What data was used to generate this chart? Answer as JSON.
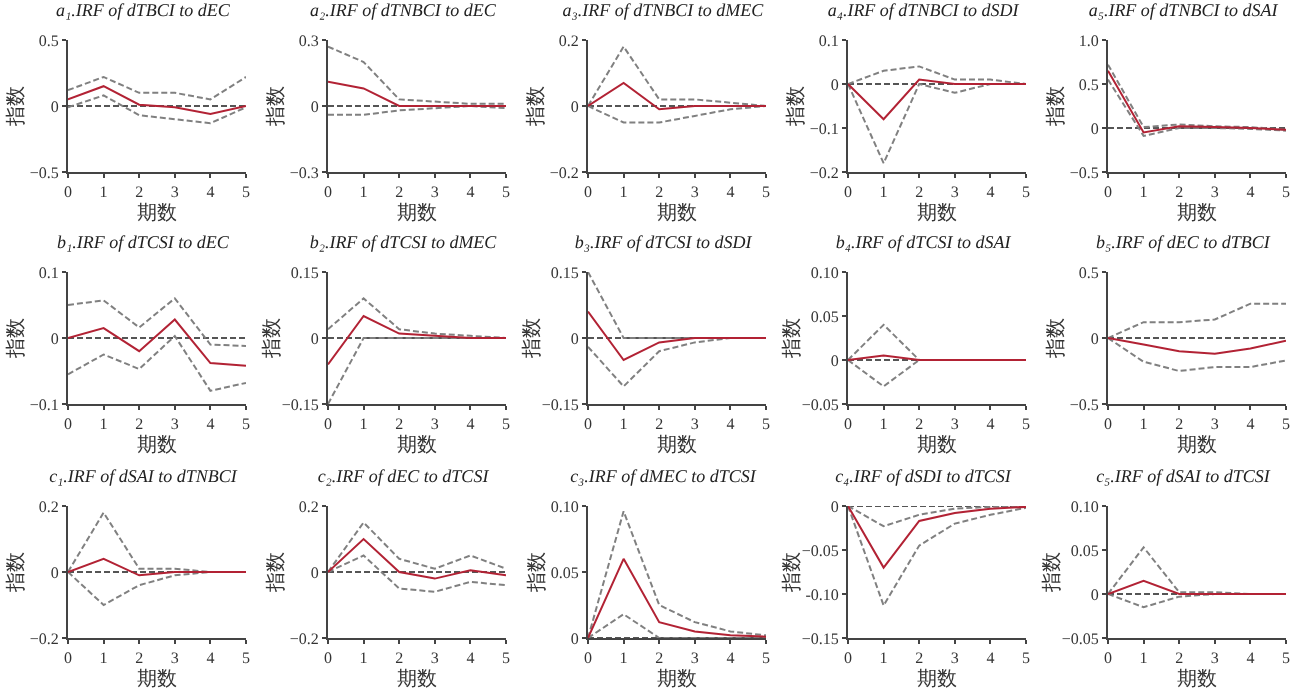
{
  "chart_data": [
    {
      "type": "line",
      "title": "a₁.IRF of dTBCI to dEC",
      "xlabel": "期数",
      "ylabel": "指数",
      "x": [
        0,
        1,
        2,
        3,
        4,
        5
      ],
      "xlim": [
        0,
        5
      ],
      "xticks": [
        0,
        1,
        2,
        3,
        4,
        5
      ],
      "ylim": [
        -0.5,
        0.5
      ],
      "yticks": [
        -0.5,
        0,
        0.5
      ],
      "ref_lines": [
        {
          "axis": "y",
          "value": 0,
          "color": "#555555",
          "line_style": "dashed"
        }
      ],
      "series": [
        {
          "color": "#808080",
          "line_style": "dashed",
          "values": [
            0.12,
            0.22,
            0.1,
            0.1,
            0.05,
            0.22
          ]
        },
        {
          "color": "#808080",
          "line_style": "dashed",
          "values": [
            -0.01,
            0.08,
            -0.07,
            -0.1,
            -0.13,
            -0.01
          ]
        },
        {
          "color": "#b22234",
          "line_style": "solid",
          "values": [
            0.05,
            0.15,
            0.01,
            -0.01,
            -0.06,
            0
          ]
        }
      ]
    },
    {
      "type": "line",
      "title": "a₂.IRF of dTNBCI to dEC",
      "xlabel": "期数",
      "ylabel": "指数",
      "x": [
        0,
        1,
        2,
        3,
        4,
        5
      ],
      "xlim": [
        0,
        5
      ],
      "xticks": [
        0,
        1,
        2,
        3,
        4,
        5
      ],
      "ylim": [
        -0.3,
        0.3
      ],
      "yticks": [
        -0.3,
        0,
        0.3
      ],
      "ref_lines": [
        {
          "axis": "y",
          "value": 0,
          "color": "#555555",
          "line_style": "dashed"
        }
      ],
      "series": [
        {
          "color": "#808080",
          "line_style": "dashed",
          "values": [
            0.27,
            0.2,
            0.03,
            0.02,
            0.01,
            0.01
          ]
        },
        {
          "color": "#808080",
          "line_style": "dashed",
          "values": [
            -0.04,
            -0.04,
            -0.02,
            -0.01,
            0,
            -0.01
          ]
        },
        {
          "color": "#b22234",
          "line_style": "solid",
          "values": [
            0.11,
            0.08,
            0,
            0,
            0,
            0
          ]
        }
      ]
    },
    {
      "type": "line",
      "title": "a₃.IRF of dTNBCI to dMEC",
      "xlabel": "期数",
      "ylabel": "指数",
      "x": [
        0,
        1,
        2,
        3,
        4,
        5
      ],
      "xlim": [
        0,
        5
      ],
      "xticks": [
        0,
        1,
        2,
        3,
        4,
        5
      ],
      "ylim": [
        -0.2,
        0.2
      ],
      "yticks": [
        -0.2,
        0,
        0.2
      ],
      "ref_lines": [
        {
          "axis": "y",
          "value": 0,
          "color": "#555555",
          "line_style": "dashed"
        }
      ],
      "series": [
        {
          "color": "#808080",
          "line_style": "dashed",
          "values": [
            0,
            0.18,
            0.02,
            0.02,
            0.01,
            0
          ]
        },
        {
          "color": "#808080",
          "line_style": "dashed",
          "values": [
            0,
            -0.05,
            -0.05,
            -0.03,
            -0.01,
            0
          ]
        },
        {
          "color": "#b22234",
          "line_style": "solid",
          "values": [
            0,
            0.07,
            -0.01,
            0,
            0,
            0
          ]
        }
      ]
    },
    {
      "type": "line",
      "title": "a₄.IRF of dTNBCI to dSDI",
      "xlabel": "期数",
      "ylabel": "指数",
      "x": [
        0,
        1,
        2,
        3,
        4,
        5
      ],
      "xlim": [
        0,
        5
      ],
      "xticks": [
        0,
        1,
        2,
        3,
        4,
        5
      ],
      "ylim": [
        -0.2,
        0.1
      ],
      "yticks": [
        -0.2,
        -0.1,
        0,
        0.1
      ],
      "ref_lines": [
        {
          "axis": "y",
          "value": 0,
          "color": "#555555",
          "line_style": "dashed"
        }
      ],
      "series": [
        {
          "color": "#808080",
          "line_style": "dashed",
          "values": [
            0,
            0.03,
            0.04,
            0.01,
            0.01,
            0
          ]
        },
        {
          "color": "#808080",
          "line_style": "dashed",
          "values": [
            0,
            -0.18,
            0,
            -0.02,
            0,
            0
          ]
        },
        {
          "color": "#b22234",
          "line_style": "solid",
          "values": [
            0,
            -0.08,
            0.01,
            0,
            0,
            0
          ]
        }
      ]
    },
    {
      "type": "line",
      "title": "a₅.IRF of dTNBCI to dSAI",
      "xlabel": "期数",
      "ylabel": "指数",
      "x": [
        0,
        1,
        2,
        3,
        4,
        5
      ],
      "xlim": [
        0,
        5
      ],
      "xticks": [
        0,
        1,
        2,
        3,
        4,
        5
      ],
      "ylim": [
        -0.5,
        1.0
      ],
      "yticks": [
        -0.5,
        0,
        0.5,
        {
          "value": 1,
          "label": "1.0"
        }
      ],
      "ref_lines": [
        {
          "axis": "y",
          "value": 0,
          "color": "#555555",
          "line_style": "dashed"
        }
      ],
      "series": [
        {
          "color": "#808080",
          "line_style": "dashed",
          "values": [
            0.72,
            0.01,
            0.04,
            0.02,
            0.01,
            -0.02
          ]
        },
        {
          "color": "#808080",
          "line_style": "dashed",
          "values": [
            0.55,
            -0.09,
            0,
            0,
            -0.01,
            -0.03
          ]
        },
        {
          "color": "#b22234",
          "line_style": "solid",
          "values": [
            0.65,
            -0.05,
            0.02,
            0.01,
            0,
            -0.02
          ]
        }
      ]
    },
    {
      "type": "line",
      "title": "b₁.IRF of dTCSI to dEC",
      "xlabel": "期数",
      "ylabel": "指数",
      "x": [
        0,
        1,
        2,
        3,
        4,
        5
      ],
      "xlim": [
        0,
        5
      ],
      "xticks": [
        0,
        1,
        2,
        3,
        4,
        5
      ],
      "ylim": [
        -0.1,
        0.1
      ],
      "yticks": [
        -0.1,
        0,
        0.1
      ],
      "ref_lines": [
        {
          "axis": "y",
          "value": 0,
          "color": "#555555",
          "line_style": "dashed"
        }
      ],
      "series": [
        {
          "color": "#808080",
          "line_style": "dashed",
          "values": [
            0.05,
            0.057,
            0.016,
            0.06,
            -0.01,
            -0.012
          ]
        },
        {
          "color": "#808080",
          "line_style": "dashed",
          "values": [
            -0.055,
            -0.025,
            -0.047,
            0.003,
            -0.08,
            -0.068
          ]
        },
        {
          "color": "#b22234",
          "line_style": "solid",
          "values": [
            0,
            0.015,
            -0.02,
            0.028,
            -0.038,
            -0.042
          ]
        }
      ]
    },
    {
      "type": "line",
      "title": "b₂.IRF of dTCSI to dMEC",
      "xlabel": "期数",
      "ylabel": "指数",
      "x": [
        0,
        1,
        2,
        3,
        4,
        5
      ],
      "xlim": [
        0,
        5
      ],
      "xticks": [
        0,
        1,
        2,
        3,
        4,
        5
      ],
      "ylim": [
        -0.15,
        0.15
      ],
      "yticks": [
        -0.15,
        0,
        0.15
      ],
      "ref_lines": [
        {
          "axis": "y",
          "value": 0,
          "color": "#555555",
          "line_style": "dashed"
        }
      ],
      "series": [
        {
          "color": "#808080",
          "line_style": "dashed",
          "values": [
            0.02,
            0.09,
            0.02,
            0.01,
            0.005,
            0
          ]
        },
        {
          "color": "#808080",
          "line_style": "dashed",
          "values": [
            -0.15,
            0,
            0,
            0,
            0,
            0
          ]
        },
        {
          "color": "#b22234",
          "line_style": "solid",
          "values": [
            -0.06,
            0.05,
            0.01,
            0.005,
            0,
            0
          ]
        }
      ]
    },
    {
      "type": "line",
      "title": "b₃.IRF of dTCSI to dSDI",
      "xlabel": "期数",
      "ylabel": "指数",
      "x": [
        0,
        1,
        2,
        3,
        4,
        5
      ],
      "xlim": [
        0,
        5
      ],
      "xticks": [
        0,
        1,
        2,
        3,
        4,
        5
      ],
      "ylim": [
        -0.15,
        0.15
      ],
      "yticks": [
        -0.15,
        0,
        0.15
      ],
      "ref_lines": [
        {
          "axis": "y",
          "value": 0,
          "color": "#555555",
          "line_style": "dashed"
        }
      ],
      "series": [
        {
          "color": "#808080",
          "line_style": "dashed",
          "values": [
            0.15,
            0,
            0,
            0,
            0,
            0
          ]
        },
        {
          "color": "#808080",
          "line_style": "dashed",
          "values": [
            -0.02,
            -0.11,
            -0.03,
            -0.01,
            0,
            0
          ]
        },
        {
          "color": "#b22234",
          "line_style": "solid",
          "values": [
            0.06,
            -0.05,
            -0.01,
            0,
            0,
            0
          ]
        }
      ]
    },
    {
      "type": "line",
      "title": "b₄.IRF of dTCSI to dSAI",
      "xlabel": "期数",
      "ylabel": "指数",
      "x": [
        0,
        1,
        2,
        3,
        4,
        5
      ],
      "xlim": [
        0,
        5
      ],
      "xticks": [
        0,
        1,
        2,
        3,
        4,
        5
      ],
      "ylim": [
        -0.05,
        0.1
      ],
      "yticks": [
        -0.05,
        0,
        0.05,
        {
          "value": 0.1,
          "label": "0.10"
        }
      ],
      "ref_lines": [
        {
          "axis": "y",
          "value": 0,
          "color": "#555555",
          "line_style": "dashed"
        }
      ],
      "series": [
        {
          "color": "#808080",
          "line_style": "dashed",
          "values": [
            0,
            0.04,
            0,
            null,
            null,
            null
          ]
        },
        {
          "color": "#808080",
          "line_style": "dashed",
          "values": [
            0,
            -0.03,
            0,
            null,
            null,
            null
          ]
        },
        {
          "color": "#b22234",
          "line_style": "solid",
          "values": [
            0,
            0.005,
            0,
            0,
            0,
            0
          ]
        }
      ]
    },
    {
      "type": "line",
      "title": "b₅.IRF of dEC to dTBCI",
      "xlabel": "期数",
      "ylabel": "指数",
      "x": [
        0,
        1,
        2,
        3,
        4,
        5
      ],
      "xlim": [
        0,
        5
      ],
      "xticks": [
        0,
        1,
        2,
        3,
        4,
        5
      ],
      "ylim": [
        -0.5,
        0.5
      ],
      "yticks": [
        -0.5,
        0,
        0.5
      ],
      "ref_lines": [
        {
          "axis": "y",
          "value": 0,
          "color": "#555555",
          "line_style": "dashed"
        }
      ],
      "series": [
        {
          "color": "#808080",
          "line_style": "dashed",
          "values": [
            0,
            0.12,
            0.12,
            0.14,
            0.26,
            0.26
          ]
        },
        {
          "color": "#808080",
          "line_style": "dashed",
          "values": [
            0,
            -0.18,
            -0.25,
            -0.22,
            -0.22,
            -0.17
          ]
        },
        {
          "color": "#b22234",
          "line_style": "solid",
          "values": [
            0,
            -0.05,
            -0.1,
            -0.12,
            -0.08,
            -0.02
          ]
        }
      ]
    },
    {
      "type": "line",
      "title": "c₁.IRF of dSAI to dTNBCI",
      "xlabel": "期数",
      "ylabel": "指数",
      "x": [
        0,
        1,
        2,
        3,
        4,
        5
      ],
      "xlim": [
        0,
        5
      ],
      "xticks": [
        0,
        1,
        2,
        3,
        4,
        5
      ],
      "ylim": [
        -0.2,
        0.2
      ],
      "yticks": [
        -0.2,
        0,
        0.2
      ],
      "ref_lines": [
        {
          "axis": "y",
          "value": 0,
          "color": "#555555",
          "line_style": "dashed"
        }
      ],
      "series": [
        {
          "color": "#808080",
          "line_style": "dashed",
          "values": [
            0,
            0.18,
            0.01,
            0.01,
            0,
            0
          ]
        },
        {
          "color": "#808080",
          "line_style": "dashed",
          "values": [
            0,
            -0.1,
            -0.04,
            -0.01,
            0,
            0
          ]
        },
        {
          "color": "#b22234",
          "line_style": "solid",
          "values": [
            0,
            0.04,
            -0.01,
            0,
            0,
            0
          ]
        }
      ]
    },
    {
      "type": "line",
      "title": "c₂.IRF of dEC to dTCSI",
      "xlabel": "期数",
      "ylabel": "指数",
      "x": [
        0,
        1,
        2,
        3,
        4,
        5
      ],
      "xlim": [
        0,
        5
      ],
      "xticks": [
        0,
        1,
        2,
        3,
        4,
        5
      ],
      "ylim": [
        -0.2,
        0.2
      ],
      "yticks": [
        -0.2,
        0,
        0.2
      ],
      "ref_lines": [
        {
          "axis": "y",
          "value": 0,
          "color": "#555555",
          "line_style": "dashed"
        }
      ],
      "series": [
        {
          "color": "#808080",
          "line_style": "dashed",
          "values": [
            0,
            0.15,
            0.04,
            0.01,
            0.05,
            0.01
          ]
        },
        {
          "color": "#808080",
          "line_style": "dashed",
          "values": [
            0,
            0.05,
            -0.05,
            -0.06,
            -0.03,
            -0.04
          ]
        },
        {
          "color": "#b22234",
          "line_style": "solid",
          "values": [
            0,
            0.1,
            0,
            -0.02,
            0.005,
            -0.01
          ]
        }
      ]
    },
    {
      "type": "line",
      "title": "c₃.IRF of dMEC to dTCSI",
      "xlabel": "期数",
      "ylabel": "指数",
      "x": [
        0,
        1,
        2,
        3,
        4,
        5
      ],
      "xlim": [
        0,
        5
      ],
      "xticks": [
        0,
        1,
        2,
        3,
        4,
        5
      ],
      "ylim": [
        0,
        0.1
      ],
      "yticks": [
        0,
        0.05,
        {
          "value": 0.1,
          "label": "0.10"
        }
      ],
      "ref_lines": [
        {
          "axis": "y",
          "value": 0,
          "color": "#555555",
          "line_style": "dashed"
        }
      ],
      "series": [
        {
          "color": "#808080",
          "line_style": "dashed",
          "values": [
            0,
            0.096,
            0.025,
            0.012,
            0.005,
            0.002
          ]
        },
        {
          "color": "#808080",
          "line_style": "dashed",
          "values": [
            0,
            0.018,
            0,
            0,
            0,
            0
          ]
        },
        {
          "color": "#b22234",
          "line_style": "solid",
          "values": [
            0,
            0.06,
            0.012,
            0.005,
            0.002,
            0.001
          ]
        }
      ]
    },
    {
      "type": "line",
      "title": "c₄.IRF of dSDI to dTCSI",
      "xlabel": "期数",
      "ylabel": "指数",
      "x": [
        0,
        1,
        2,
        3,
        4,
        5
      ],
      "xlim": [
        0,
        5
      ],
      "xticks": [
        0,
        1,
        2,
        3,
        4,
        5
      ],
      "ylim": [
        -0.15,
        0
      ],
      "yticks": [
        -0.15,
        {
          "value": -0.1,
          "label": "-0.10"
        },
        -0.05,
        0
      ],
      "ref_lines": [
        {
          "axis": "y",
          "value": 0,
          "color": "#555555",
          "line_style": "dashed"
        }
      ],
      "series": [
        {
          "color": "#808080",
          "line_style": "dashed",
          "values": [
            0,
            -0.023,
            -0.01,
            -0.003,
            -0.001,
            0
          ]
        },
        {
          "color": "#808080",
          "line_style": "dashed",
          "values": [
            0,
            -0.113,
            -0.045,
            -0.02,
            -0.01,
            -0.002
          ]
        },
        {
          "color": "#b22234",
          "line_style": "solid",
          "values": [
            0,
            -0.07,
            -0.017,
            -0.008,
            -0.003,
            -0.001
          ]
        }
      ]
    },
    {
      "type": "line",
      "title": "c₅.IRF of dSAI to dTCSI",
      "xlabel": "期数",
      "ylabel": "指数",
      "x": [
        0,
        1,
        2,
        3,
        4,
        5
      ],
      "xlim": [
        0,
        5
      ],
      "xticks": [
        0,
        1,
        2,
        3,
        4,
        5
      ],
      "ylim": [
        -0.05,
        0.1
      ],
      "yticks": [
        -0.05,
        0,
        0.05,
        {
          "value": 0.1,
          "label": "0.10"
        }
      ],
      "ref_lines": [
        {
          "axis": "y",
          "value": 0,
          "color": "#555555",
          "line_style": "dashed"
        }
      ],
      "series": [
        {
          "color": "#808080",
          "line_style": "dashed",
          "values": [
            0,
            0.053,
            0.002,
            0.002,
            0,
            0
          ]
        },
        {
          "color": "#808080",
          "line_style": "dashed",
          "values": [
            0,
            -0.015,
            -0.003,
            0,
            0,
            0
          ]
        },
        {
          "color": "#b22234",
          "line_style": "solid",
          "values": [
            0,
            0.015,
            0,
            0,
            0,
            0
          ]
        }
      ]
    }
  ]
}
